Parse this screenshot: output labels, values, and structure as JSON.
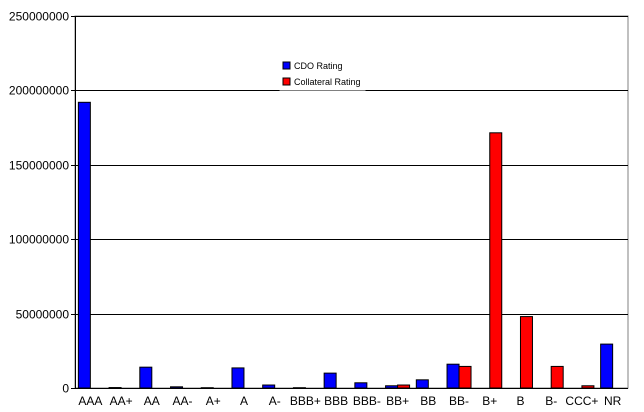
{
  "chart_data": {
    "type": "bar",
    "title": "",
    "xlabel": "",
    "ylabel": "",
    "ylim": [
      0,
      250000000
    ],
    "yticks": [
      0,
      50000000,
      100000000,
      150000000,
      200000000,
      250000000
    ],
    "ytick_labels": [
      "0",
      "50000000",
      "100000000",
      "150000000",
      "200000000",
      "250000000"
    ],
    "grid": true,
    "legend_placement": "top-center",
    "categories": [
      "AAA",
      "AA+",
      "AA",
      "AA-",
      "A+",
      "A",
      "A-",
      "BBB+",
      "BBB",
      "BBB-",
      "BB+",
      "BB",
      "BB-",
      "B+",
      "B",
      "B-",
      "CCC+",
      "NR"
    ],
    "series": [
      {
        "name": "CDO Rating",
        "color": "#0000ff",
        "values": [
          192000000,
          300000,
          14000000,
          800000,
          200000,
          13500000,
          2000000,
          200000,
          10000000,
          3500000,
          1500000,
          5500000,
          16000000,
          0,
          0,
          0,
          0,
          29500000
        ]
      },
      {
        "name": "Collateral Rating",
        "color": "#ff0000",
        "values": [
          0,
          0,
          0,
          0,
          0,
          0,
          0,
          0,
          0,
          0,
          2000000,
          0,
          14500000,
          171500000,
          48000000,
          14500000,
          1500000,
          0
        ]
      }
    ]
  }
}
